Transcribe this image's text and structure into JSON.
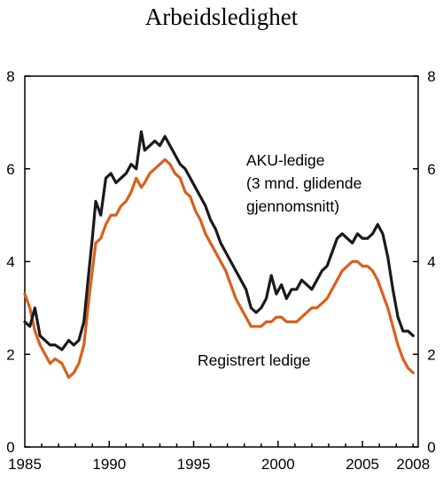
{
  "chart_data": {
    "type": "line",
    "title": "Arbeidsledighet",
    "xlabel": "",
    "ylabel": "",
    "xlim": [
      1985,
      2008.3
    ],
    "ylim": [
      0,
      8
    ],
    "x_ticks": [
      1985,
      1990,
      1995,
      2000,
      2005,
      2008
    ],
    "y_ticks": [
      0,
      2,
      4,
      6,
      8
    ],
    "dual_y_axis": true,
    "grid": false,
    "annotations": [
      "AKU-ledige",
      "(3 mnd. glidende",
      "gjennomsnitt)",
      "Registrert ledige"
    ],
    "series": [
      {
        "name": "AKU-ledige (3 mnd. glidende gjennomsnitt)",
        "color": "#1a1a1a",
        "x": [
          1985.0,
          1985.3,
          1985.6,
          1985.9,
          1986.2,
          1986.5,
          1986.8,
          1987.2,
          1987.6,
          1987.9,
          1988.2,
          1988.5,
          1988.8,
          1989.0,
          1989.2,
          1989.5,
          1989.8,
          1990.1,
          1990.4,
          1990.7,
          1991.0,
          1991.3,
          1991.6,
          1991.9,
          1992.1,
          1992.4,
          1992.7,
          1993.0,
          1993.3,
          1993.6,
          1993.9,
          1994.2,
          1994.5,
          1994.8,
          1995.1,
          1995.4,
          1995.7,
          1996.0,
          1996.3,
          1996.6,
          1996.9,
          1997.2,
          1997.5,
          1997.8,
          1998.1,
          1998.4,
          1998.7,
          1999.0,
          1999.3,
          1999.6,
          1999.9,
          2000.2,
          2000.5,
          2000.8,
          2001.1,
          2001.4,
          2001.7,
          2002.0,
          2002.3,
          2002.6,
          2002.9,
          2003.2,
          2003.5,
          2003.8,
          2004.1,
          2004.4,
          2004.7,
          2005.0,
          2005.3,
          2005.6,
          2005.9,
          2006.2,
          2006.5,
          2006.8,
          2007.1,
          2007.4,
          2007.7,
          2008.0
        ],
        "y": [
          2.7,
          2.6,
          3.0,
          2.4,
          2.3,
          2.2,
          2.2,
          2.1,
          2.3,
          2.2,
          2.3,
          2.7,
          3.8,
          4.5,
          5.3,
          5.0,
          5.8,
          5.9,
          5.7,
          5.8,
          5.9,
          6.1,
          6.0,
          6.8,
          6.4,
          6.5,
          6.6,
          6.5,
          6.7,
          6.5,
          6.3,
          6.1,
          6.0,
          5.8,
          5.6,
          5.4,
          5.2,
          4.9,
          4.7,
          4.4,
          4.2,
          4.0,
          3.8,
          3.6,
          3.4,
          3.0,
          2.9,
          3.0,
          3.2,
          3.7,
          3.3,
          3.5,
          3.2,
          3.4,
          3.4,
          3.6,
          3.5,
          3.4,
          3.6,
          3.8,
          3.9,
          4.2,
          4.5,
          4.6,
          4.5,
          4.4,
          4.6,
          4.5,
          4.5,
          4.6,
          4.8,
          4.6,
          4.1,
          3.4,
          2.8,
          2.5,
          2.5,
          2.4
        ]
      },
      {
        "name": "Registrert ledige",
        "color": "#d9601c",
        "x": [
          1985.0,
          1985.3,
          1985.6,
          1985.9,
          1986.2,
          1986.5,
          1986.8,
          1987.2,
          1987.6,
          1987.9,
          1988.2,
          1988.5,
          1988.8,
          1989.0,
          1989.2,
          1989.5,
          1989.8,
          1990.1,
          1990.4,
          1990.7,
          1991.0,
          1991.3,
          1991.6,
          1991.9,
          1992.1,
          1992.4,
          1992.7,
          1993.0,
          1993.3,
          1993.6,
          1993.9,
          1994.2,
          1994.5,
          1994.8,
          1995.1,
          1995.4,
          1995.7,
          1996.0,
          1996.3,
          1996.6,
          1996.9,
          1997.2,
          1997.5,
          1997.8,
          1998.1,
          1998.4,
          1998.7,
          1999.0,
          1999.3,
          1999.6,
          1999.9,
          2000.2,
          2000.5,
          2000.8,
          2001.1,
          2001.4,
          2001.7,
          2002.0,
          2002.3,
          2002.6,
          2002.9,
          2003.2,
          2003.5,
          2003.8,
          2004.1,
          2004.4,
          2004.7,
          2005.0,
          2005.3,
          2005.6,
          2005.9,
          2006.2,
          2006.5,
          2006.8,
          2007.1,
          2007.4,
          2007.7,
          2008.0
        ],
        "y": [
          3.3,
          3.0,
          2.5,
          2.2,
          2.0,
          1.8,
          1.9,
          1.8,
          1.5,
          1.6,
          1.8,
          2.2,
          3.2,
          3.8,
          4.4,
          4.5,
          4.8,
          5.0,
          5.0,
          5.2,
          5.3,
          5.5,
          5.8,
          5.6,
          5.7,
          5.9,
          6.0,
          6.1,
          6.2,
          6.1,
          5.9,
          5.8,
          5.5,
          5.4,
          5.1,
          4.9,
          4.6,
          4.4,
          4.2,
          4.0,
          3.8,
          3.5,
          3.2,
          3.0,
          2.8,
          2.6,
          2.6,
          2.6,
          2.7,
          2.7,
          2.8,
          2.8,
          2.7,
          2.7,
          2.7,
          2.8,
          2.9,
          3.0,
          3.0,
          3.1,
          3.2,
          3.4,
          3.6,
          3.8,
          3.9,
          4.0,
          4.0,
          3.9,
          3.9,
          3.8,
          3.6,
          3.3,
          3.0,
          2.6,
          2.2,
          1.9,
          1.7,
          1.6
        ]
      }
    ]
  }
}
